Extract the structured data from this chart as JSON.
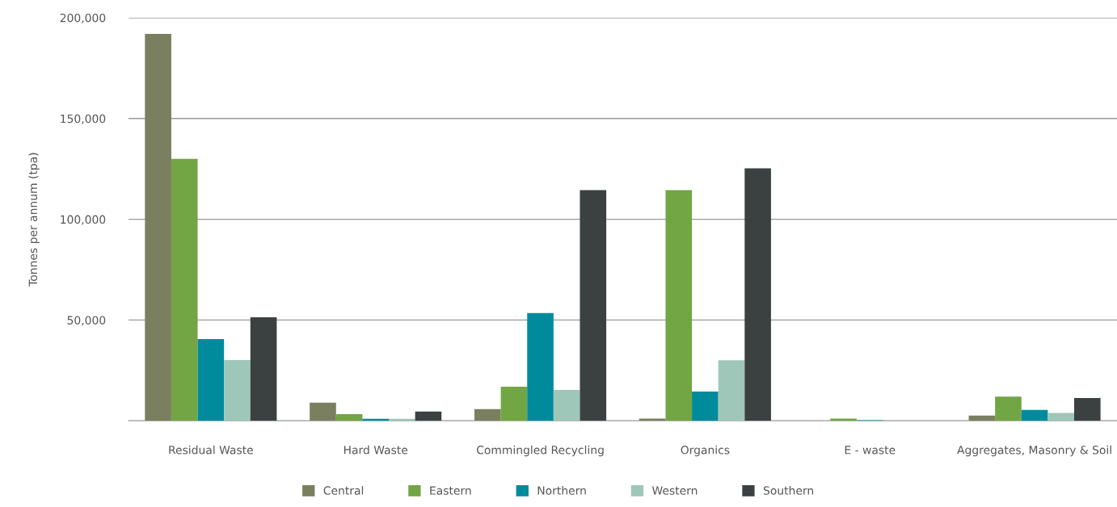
{
  "chart_data": {
    "type": "bar",
    "ylabel": "Tonnes per annum (tpa)",
    "categories": [
      "Residual Waste",
      "Hard Waste",
      "Commingled Recycling",
      "Organics",
      "E - waste",
      "Aggregates, Masonry & Soil"
    ],
    "series": [
      {
        "name": "Central",
        "color": "#7a7f60",
        "values": [
          192000,
          9000,
          5800,
          1100,
          0,
          2600
        ]
      },
      {
        "name": "Eastern",
        "color": "#72a544",
        "values": [
          130000,
          3300,
          16900,
          114500,
          1100,
          12000
        ]
      },
      {
        "name": "Northern",
        "color": "#008b9c",
        "values": [
          40600,
          1000,
          53500,
          14500,
          300,
          5400
        ]
      },
      {
        "name": "Western",
        "color": "#9fc7b9",
        "values": [
          30100,
          1000,
          15300,
          30000,
          0,
          3900
        ]
      },
      {
        "name": "Southern",
        "color": "#3b4141",
        "values": [
          51400,
          4600,
          114500,
          125300,
          0,
          11300
        ]
      }
    ],
    "ylim": [
      0,
      200000
    ],
    "yticks": [
      {
        "value": 0,
        "label": null
      },
      {
        "value": 50000,
        "label": "50,000"
      },
      {
        "value": 100000,
        "label": "100,000"
      },
      {
        "value": 150000,
        "label": "150,000"
      },
      {
        "value": 200000,
        "label": "200,000"
      }
    ],
    "grid": "y",
    "legend": "bottom"
  }
}
